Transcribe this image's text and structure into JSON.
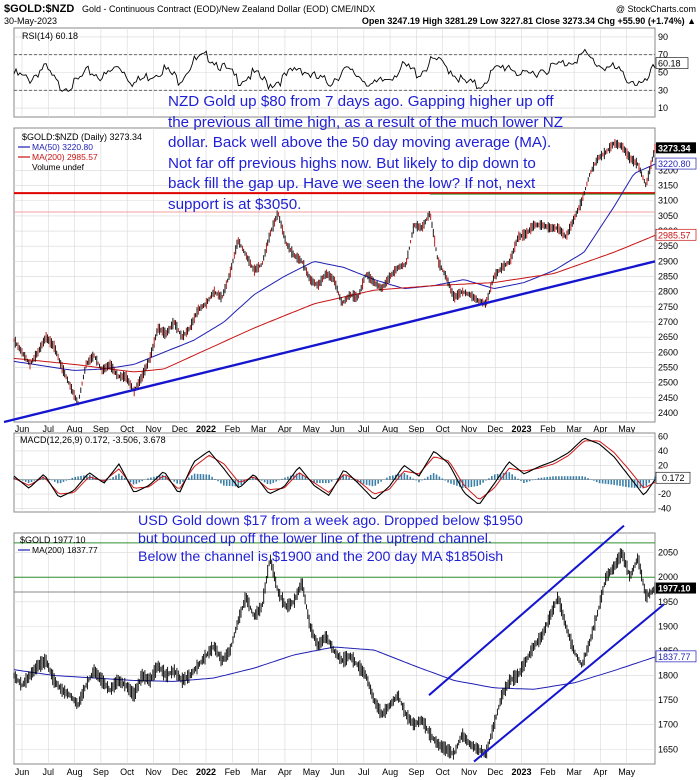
{
  "header": {
    "symbol": "$GOLD:$NZD",
    "description": "Gold - Continuous Contract (EOD)/New Zealand Dollar (EOD)  CME/INDX",
    "watermark": "@ StockCharts.com",
    "date": "30-May-2023",
    "ohlc": "Open 3247.19  High 3281.29  Low 3227.81  Close 3273.34  Chg +55.90 (+1.74%) ▲"
  },
  "colors": {
    "price": "#000000",
    "ma50": "#1f1fb4",
    "ma200": "#c81414",
    "trendline": "#1515d0",
    "annotation": "#1f1fd6",
    "grid": "#d8d8d8",
    "hist": "#3a7fa8",
    "support_red": "#e00000",
    "support_green": "#2f8f2f"
  },
  "months": [
    "Jun",
    "Jul",
    "Aug",
    "Sep",
    "Oct",
    "Nov",
    "Dec",
    "2022",
    "Feb",
    "Mar",
    "Apr",
    "May",
    "Jun",
    "Jul",
    "Aug",
    "Sep",
    "Oct",
    "Nov",
    "Dec",
    "2023",
    "Feb",
    "Mar",
    "Apr",
    "May"
  ],
  "chart_data": [
    {
      "type": "line",
      "panel": "rsi",
      "label": "RSI(14) 60.18",
      "last_value": "60.18",
      "ylim": [
        0,
        100
      ],
      "yticks": [
        10,
        30,
        50,
        70,
        90
      ],
      "levels": [
        30,
        70
      ],
      "anchors": {
        "x": [
          0,
          15,
          30,
          45,
          60,
          75,
          90,
          105,
          120,
          135,
          150,
          165,
          180,
          195,
          210,
          225,
          240,
          255,
          270,
          285,
          300,
          315,
          330,
          345,
          360,
          375,
          390,
          405,
          420,
          435,
          450,
          465,
          480,
          495,
          510,
          525,
          540,
          555,
          570,
          585,
          600,
          615,
          630,
          641
        ],
        "values": [
          52,
          45,
          60,
          38,
          40,
          55,
          48,
          62,
          41,
          50,
          58,
          45,
          66,
          72,
          58,
          45,
          52,
          40,
          47,
          60,
          48,
          42,
          56,
          50,
          38,
          48,
          60,
          52,
          68,
          58,
          42,
          38,
          55,
          62,
          48,
          56,
          60,
          66,
          74,
          62,
          58,
          46,
          38,
          60
        ]
      }
    },
    {
      "type": "line",
      "panel": "gold_nzd",
      "label": "$GOLD:$NZD (Daily) 3273.34",
      "last_value": "3273.34",
      "ylim": [
        2370,
        3340
      ],
      "yticks": [
        2400,
        2450,
        2500,
        2550,
        2600,
        2650,
        2700,
        2750,
        2800,
        2850,
        2900,
        2950,
        3000,
        3050,
        3100,
        3150,
        3200
      ],
      "series": [
        {
          "name": "MA(50) 3220.80",
          "last": "3220.80",
          "x": [
            0,
            30,
            60,
            90,
            120,
            150,
            180,
            210,
            240,
            270,
            300,
            330,
            360,
            390,
            420,
            450,
            480,
            510,
            540,
            570,
            600,
            620,
            641
          ],
          "values": [
            2570,
            2555,
            2540,
            2545,
            2560,
            2600,
            2640,
            2700,
            2790,
            2850,
            2900,
            2880,
            2840,
            2810,
            2820,
            2840,
            2810,
            2830,
            2870,
            2930,
            3080,
            3190,
            3220.8
          ]
        },
        {
          "name": "MA(200) 2985.57",
          "last": "2985.57",
          "x": [
            0,
            60,
            120,
            150,
            180,
            240,
            300,
            360,
            420,
            480,
            540,
            600,
            641
          ],
          "values": [
            2580,
            2560,
            2535,
            2545,
            2590,
            2680,
            2760,
            2805,
            2820,
            2830,
            2860,
            2930,
            2985.57
          ]
        }
      ],
      "price": {
        "x": [
          0,
          8,
          16,
          24,
          32,
          40,
          48,
          56,
          64,
          72,
          80,
          88,
          96,
          104,
          112,
          120,
          128,
          136,
          144,
          152,
          160,
          168,
          176,
          184,
          192,
          200,
          208,
          216,
          224,
          232,
          240,
          248,
          256,
          264,
          272,
          280,
          288,
          296,
          304,
          312,
          320,
          328,
          336,
          344,
          352,
          360,
          368,
          376,
          384,
          392,
          400,
          408,
          416,
          424,
          432,
          440,
          448,
          456,
          464,
          472,
          480,
          488,
          496,
          504,
          512,
          520,
          528,
          536,
          544,
          552,
          560,
          568,
          576,
          584,
          592,
          600,
          608,
          616,
          624,
          632,
          641
        ],
        "values": [
          2640,
          2600,
          2560,
          2600,
          2650,
          2620,
          2550,
          2490,
          2430,
          2560,
          2590,
          2540,
          2560,
          2520,
          2520,
          2470,
          2520,
          2580,
          2680,
          2660,
          2700,
          2650,
          2680,
          2740,
          2760,
          2800,
          2780,
          2860,
          2970,
          2920,
          2870,
          2890,
          2990,
          3060,
          2960,
          2920,
          2900,
          2840,
          2820,
          2860,
          2840,
          2760,
          2790,
          2780,
          2860,
          2830,
          2810,
          2850,
          2880,
          2890,
          3020,
          3010,
          3060,
          2900,
          2850,
          2780,
          2800,
          2790,
          2770,
          2760,
          2850,
          2880,
          2900,
          2980,
          2990,
          3020,
          3020,
          3010,
          3010,
          2980,
          3040,
          3100,
          3190,
          3240,
          3260,
          3290,
          3280,
          3240,
          3220,
          3150,
          3273.34
        ]
      },
      "lines": [
        {
          "name": "support-red",
          "value": 3125
        },
        {
          "name": "support-green",
          "value": 3125
        },
        {
          "name": "support-pink",
          "value": 3063
        }
      ],
      "trendline": {
        "x": [
          -10,
          641
        ],
        "values": [
          2370,
          2900
        ]
      }
    },
    {
      "type": "line",
      "panel": "macd",
      "label": "MACD(12,26,9) 0.172, -3.506, 3.678",
      "last_value": "0.172",
      "ylim": [
        -45,
        65
      ],
      "yticks": [
        -40,
        -20,
        0,
        20,
        40,
        60
      ],
      "anchors": {
        "x": [
          0,
          15,
          30,
          45,
          60,
          75,
          90,
          105,
          120,
          135,
          150,
          165,
          180,
          195,
          210,
          225,
          240,
          255,
          270,
          285,
          300,
          315,
          330,
          345,
          360,
          375,
          390,
          405,
          420,
          435,
          450,
          465,
          480,
          495,
          510,
          525,
          540,
          555,
          570,
          585,
          600,
          615,
          630,
          641
        ],
        "macd": [
          5,
          -12,
          8,
          -25,
          -15,
          10,
          -5,
          22,
          -18,
          -8,
          12,
          -20,
          25,
          40,
          15,
          -12,
          8,
          -20,
          -10,
          18,
          -8,
          -22,
          14,
          -6,
          -28,
          -10,
          20,
          5,
          40,
          22,
          -18,
          -35,
          -6,
          25,
          8,
          18,
          26,
          38,
          58,
          50,
          32,
          5,
          -22,
          0.172
        ],
        "signal": [
          2,
          -8,
          4,
          -20,
          -18,
          4,
          -2,
          15,
          -12,
          -10,
          6,
          -14,
          18,
          34,
          22,
          -4,
          4,
          -14,
          -12,
          10,
          -4,
          -18,
          8,
          -2,
          -20,
          -14,
          12,
          8,
          32,
          26,
          -8,
          -28,
          -12,
          16,
          12,
          16,
          22,
          34,
          54,
          54,
          38,
          14,
          -12,
          -3.506
        ]
      },
      "histogram_last": "3.678"
    },
    {
      "type": "line",
      "panel": "gold_usd",
      "label": "$GOLD 1977.10",
      "last_value": "1977.10",
      "ylim": [
        1620,
        2090
      ],
      "yticks": [
        1650,
        1700,
        1750,
        1800,
        1850,
        1900,
        1950,
        2000,
        2050
      ],
      "series": [
        {
          "name": "MA(200) 1837.77",
          "last": "1837.77",
          "x": [
            0,
            40,
            80,
            120,
            160,
            200,
            240,
            280,
            320,
            360,
            400,
            440,
            480,
            520,
            560,
            600,
            641
          ],
          "values": [
            1812,
            1800,
            1795,
            1790,
            1788,
            1795,
            1815,
            1842,
            1858,
            1852,
            1820,
            1790,
            1775,
            1772,
            1785,
            1810,
            1837.77
          ]
        }
      ],
      "price": {
        "x": [
          0,
          8,
          16,
          24,
          32,
          40,
          48,
          56,
          64,
          72,
          80,
          88,
          96,
          104,
          112,
          120,
          128,
          136,
          144,
          152,
          160,
          168,
          176,
          184,
          192,
          200,
          208,
          216,
          224,
          232,
          240,
          248,
          256,
          264,
          272,
          280,
          288,
          296,
          304,
          312,
          320,
          328,
          336,
          344,
          352,
          360,
          368,
          376,
          384,
          392,
          400,
          408,
          416,
          424,
          432,
          440,
          448,
          456,
          464,
          472,
          480,
          488,
          496,
          504,
          512,
          520,
          528,
          536,
          544,
          552,
          560,
          568,
          576,
          584,
          592,
          600,
          608,
          616,
          624,
          632,
          641
        ],
        "values": [
          1800,
          1780,
          1800,
          1820,
          1830,
          1790,
          1770,
          1760,
          1740,
          1780,
          1810,
          1790,
          1770,
          1790,
          1780,
          1760,
          1800,
          1790,
          1820,
          1800,
          1810,
          1790,
          1800,
          1820,
          1840,
          1860,
          1830,
          1850,
          1910,
          1960,
          1920,
          1940,
          2040,
          1970,
          1940,
          1950,
          1990,
          1900,
          1860,
          1880,
          1850,
          1830,
          1840,
          1820,
          1800,
          1750,
          1720,
          1740,
          1760,
          1720,
          1700,
          1710,
          1680,
          1660,
          1650,
          1640,
          1680,
          1660,
          1650,
          1640,
          1700,
          1760,
          1790,
          1800,
          1830,
          1860,
          1880,
          1920,
          1960,
          1900,
          1850,
          1820,
          1870,
          1930,
          2000,
          2020,
          2050,
          2000,
          2040,
          1960,
          1977.1
        ]
      },
      "lines": [
        {
          "name": "level-2070",
          "value": 2070
        },
        {
          "name": "level-2000",
          "value": 2000
        },
        {
          "name": "level-1970",
          "value": 1970
        }
      ],
      "channel": [
        {
          "name": "channel-upper",
          "x": [
            415,
            610
          ],
          "values": [
            1760,
            2105
          ]
        },
        {
          "name": "channel-lower",
          "x": [
            460,
            650
          ],
          "values": [
            1625,
            1945
          ]
        }
      ]
    }
  ],
  "annotations": {
    "nzd": "NZD Gold up $80 from 7 days ago. Gapping higher up off the previous all time high, as a result of the much lower NZ dollar. Back well above the 50 day moving average (MA). Not far off previous highs now. But likely to dip down to back fill the gap up. Have we seen the low? If not, next support is at $3050.",
    "usd": "USD Gold down $17 from a week ago. Dropped below $1950 but bounced up off the lower line of the uptrend channel. Below the channel is $1900 and the 200 day MA $1850ish"
  },
  "legend": {
    "volume": "Volume undef",
    "gold_ma": "MA(200) 1837.77"
  }
}
